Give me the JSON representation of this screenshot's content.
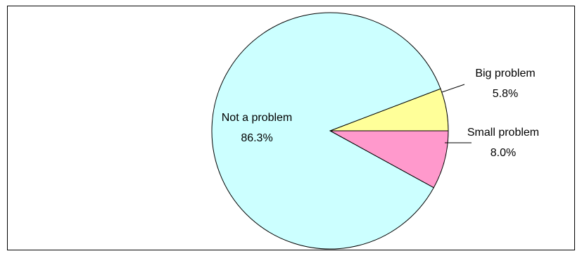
{
  "chart_data": {
    "type": "pie",
    "title": "",
    "slices": [
      {
        "label": "Not a problem",
        "value": 86.3,
        "value_text": "86.3%",
        "color": "#ccffff"
      },
      {
        "label": "Big problem",
        "value": 5.8,
        "value_text": "5.8%",
        "color": "#ffff99"
      },
      {
        "label": "Small problem",
        "value": 8.0,
        "value_text": "8.0%",
        "color": "#ff99cc"
      }
    ],
    "legend": "none",
    "data_labels": "category name and percentage"
  },
  "colors": {
    "border": "#000000",
    "background": "#ffffff"
  }
}
